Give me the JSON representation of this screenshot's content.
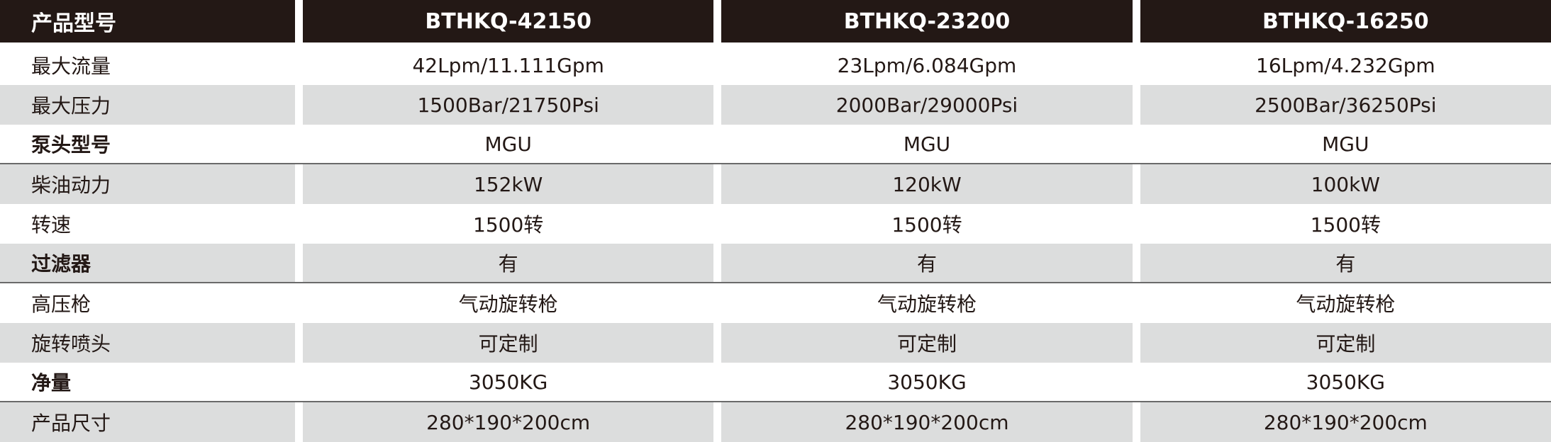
{
  "table": {
    "header": [
      "产品型号",
      "BTHKQ-42150",
      "BTHKQ-23200",
      "BTHKQ-16250"
    ],
    "rows": [
      [
        "最大流量",
        "42Lpm/11.111Gpm",
        "23Lpm/6.084Gpm",
        "16Lpm/4.232Gpm"
      ],
      [
        "最大压力",
        "1500Bar/21750Psi",
        "2000Bar/29000Psi",
        "2500Bar/36250Psi"
      ],
      [
        "泵头型号",
        "MGU",
        "MGU",
        "MGU"
      ],
      [
        "柴油动力",
        "152kW",
        "120kW",
        "100kW"
      ],
      [
        "转速",
        "1500转",
        "1500转",
        "1500转"
      ],
      [
        "过滤器",
        "有",
        "有",
        "有"
      ],
      [
        "高压枪",
        "气动旋转枪",
        "气动旋转枪",
        "气动旋转枪"
      ],
      [
        "旋转喷头",
        "可定制",
        "可定制",
        "可定制"
      ],
      [
        "净量",
        "3050KG",
        "3050KG",
        "3050KG"
      ],
      [
        "产品尺寸",
        "280*190*200cm",
        "280*190*200cm",
        "280*190*200cm"
      ]
    ]
  }
}
